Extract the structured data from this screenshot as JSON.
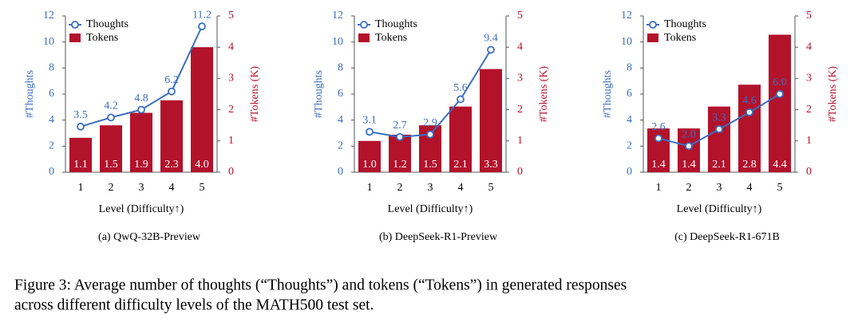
{
  "chart_data": [
    {
      "type": "bar-line",
      "subtitle": "(a) QwQ-32B-Preview",
      "xlabel": "Level (Difficulty↑)",
      "ylabel": "#Thoughts",
      "y2label": "#Tokens (K)",
      "categories": [
        "1",
        "2",
        "3",
        "4",
        "5"
      ],
      "series": [
        {
          "name": "Thoughts",
          "kind": "line",
          "color": "#3b6fc0",
          "values": [
            3.5,
            4.2,
            4.8,
            6.2,
            11.2
          ],
          "value_labels": [
            "3.5",
            "4.2",
            "4.8",
            "6.2",
            "11.2"
          ]
        },
        {
          "name": "Tokens",
          "kind": "bar",
          "axis": "y2",
          "color": "#b3122b",
          "values": [
            1.1,
            1.5,
            1.9,
            2.3,
            4.0
          ],
          "value_labels": [
            "1.1",
            "1.5",
            "1.9",
            "2.3",
            "4.0"
          ]
        }
      ],
      "ylim": [
        0,
        12
      ],
      "yticks": [
        0,
        2,
        4,
        6,
        8,
        10,
        12
      ],
      "y2lim": [
        0,
        5
      ],
      "y2ticks": [
        0,
        1,
        2,
        3,
        4,
        5
      ],
      "legend": "upper left"
    },
    {
      "type": "bar-line",
      "subtitle": "(b) DeepSeek-R1-Preview",
      "xlabel": "Level (Difficulty↑)",
      "ylabel": "#Thoughts",
      "y2label": "#Tokens (K)",
      "categories": [
        "1",
        "2",
        "3",
        "4",
        "5"
      ],
      "series": [
        {
          "name": "Thoughts",
          "kind": "line",
          "color": "#3b6fc0",
          "values": [
            3.1,
            2.7,
            2.9,
            5.6,
            9.4
          ],
          "value_labels": [
            "3.1",
            "2.7",
            "2.9",
            "5.6",
            "9.4"
          ]
        },
        {
          "name": "Tokens",
          "kind": "bar",
          "axis": "y2",
          "color": "#b3122b",
          "values": [
            1.0,
            1.2,
            1.5,
            2.1,
            3.3
          ],
          "value_labels": [
            "1.0",
            "1.2",
            "1.5",
            "2.1",
            "3.3"
          ]
        }
      ],
      "ylim": [
        0,
        12
      ],
      "yticks": [
        0,
        2,
        4,
        6,
        8,
        10,
        12
      ],
      "y2lim": [
        0,
        5
      ],
      "y2ticks": [
        0,
        1,
        2,
        3,
        4,
        5
      ],
      "legend": "upper left"
    },
    {
      "type": "bar-line",
      "subtitle": "(c) DeepSeek-R1-671B",
      "xlabel": "Level (Difficulty↑)",
      "ylabel": "#Thoughts",
      "y2label": "#Tokens (K)",
      "categories": [
        "1",
        "2",
        "3",
        "4",
        "5"
      ],
      "series": [
        {
          "name": "Thoughts",
          "kind": "line",
          "color": "#3b6fc0",
          "values": [
            2.6,
            2.0,
            3.3,
            4.6,
            6.0
          ],
          "value_labels": [
            "2.6",
            "2.0",
            "3.3",
            "4.6",
            "6.0"
          ]
        },
        {
          "name": "Tokens",
          "kind": "bar",
          "axis": "y2",
          "color": "#b3122b",
          "values": [
            1.4,
            1.4,
            2.1,
            2.8,
            4.4
          ],
          "value_labels": [
            "1.4",
            "1.4",
            "2.1",
            "2.8",
            "4.4"
          ]
        }
      ],
      "ylim": [
        0,
        12
      ],
      "yticks": [
        0,
        2,
        4,
        6,
        8,
        10,
        12
      ],
      "y2lim": [
        0,
        5
      ],
      "y2ticks": [
        0,
        1,
        2,
        3,
        4,
        5
      ],
      "legend": "upper left"
    }
  ],
  "caption": [
    "Figure 3: Average number of thoughts (“Thoughts”) and tokens (“Tokens”) in generated responses",
    "across different difficulty levels of the MATH500 test set."
  ]
}
